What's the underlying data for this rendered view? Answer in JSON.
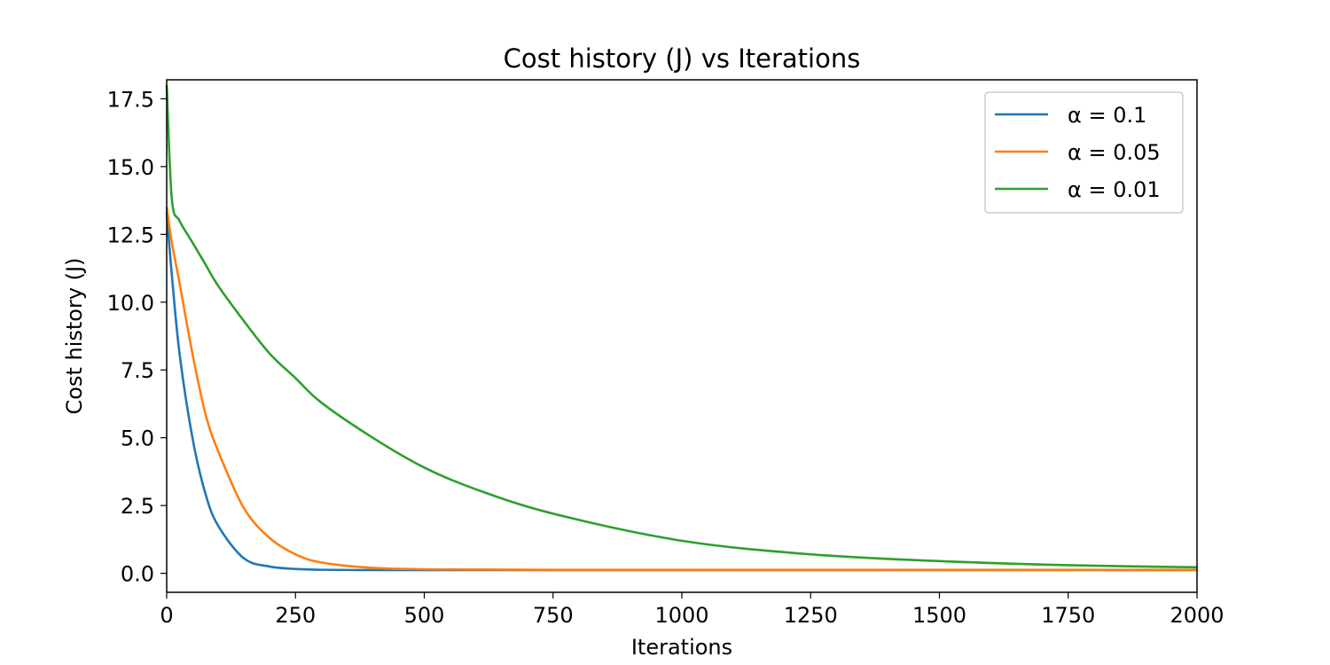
{
  "chart_data": {
    "type": "line",
    "title": "Cost history (J) vs Iterations",
    "xlabel": "Iterations",
    "ylabel": "Cost history (J)",
    "xlim": [
      0,
      2000
    ],
    "ylim": [
      -0.7,
      18.2
    ],
    "xticks": [
      "0",
      "250",
      "500",
      "750",
      "1000",
      "1250",
      "1500",
      "1750",
      "2000"
    ],
    "yticks": [
      "0.0",
      "2.5",
      "5.0",
      "7.5",
      "10.0",
      "12.5",
      "15.0",
      "17.5"
    ],
    "grid": false,
    "legend_position": "top-right",
    "x": [
      0,
      10,
      25,
      50,
      75,
      100,
      150,
      200,
      250,
      300,
      400,
      500,
      600,
      750,
      1000,
      1250,
      1500,
      1750,
      2000
    ],
    "series": [
      {
        "name": "α = 0.1",
        "color": "#1f77b4",
        "values": [
          13.3,
          11.0,
          8.1,
          5.0,
          2.95,
          1.75,
          0.55,
          0.25,
          0.16,
          0.13,
          0.12,
          0.12,
          0.12,
          0.12,
          0.12,
          0.12,
          0.12,
          0.12,
          0.12
        ]
      },
      {
        "name": "α = 0.05",
        "color": "#ff7f0e",
        "values": [
          13.5,
          12.2,
          10.7,
          8.1,
          5.9,
          4.5,
          2.4,
          1.3,
          0.7,
          0.4,
          0.2,
          0.15,
          0.14,
          0.13,
          0.13,
          0.13,
          0.13,
          0.13,
          0.13
        ]
      },
      {
        "name": "α = 0.01",
        "color": "#2ca02c",
        "values": [
          18.0,
          13.8,
          13.0,
          12.2,
          11.4,
          10.6,
          9.3,
          8.1,
          7.2,
          6.3,
          5.0,
          3.9,
          3.1,
          2.2,
          1.2,
          0.7,
          0.45,
          0.3,
          0.22
        ]
      }
    ]
  }
}
